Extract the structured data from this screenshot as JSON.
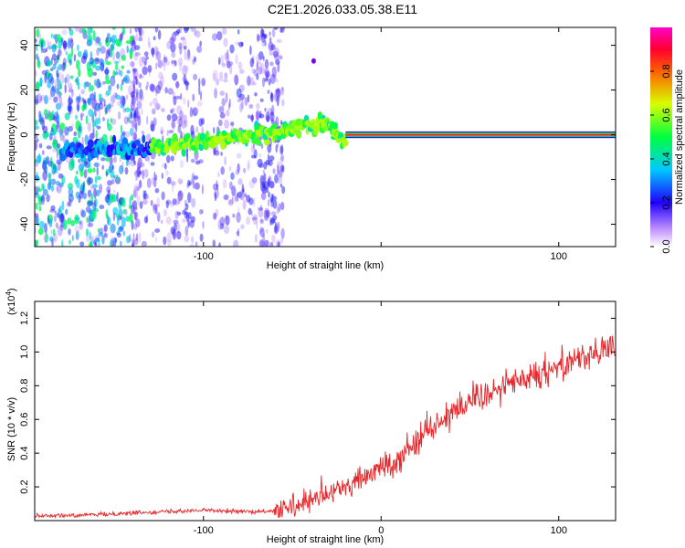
{
  "title": "C2E1.2026.033.05.38.E11",
  "chart_data": [
    {
      "type": "heatmap",
      "xlabel": "Height of straight line (km)",
      "ylabel": "Frequency (Hz)",
      "xlim": [
        -195,
        132
      ],
      "ylim": [
        -50,
        48
      ],
      "xticks": [
        -100,
        0,
        100
      ],
      "xtick_labels": [
        "-100",
        "",
        "100"
      ],
      "yticks": [
        -40,
        -20,
        0,
        20,
        40
      ],
      "ytick_labels": [
        "-40",
        "-20",
        "0",
        "20",
        "40"
      ],
      "ridge": {
        "x": [
          -160,
          -140,
          -120,
          -100,
          -80,
          -60,
          -45,
          -30,
          -22,
          -15,
          -5,
          5,
          20,
          60,
          100,
          132
        ],
        "frequency": [
          -7,
          -6,
          -5,
          -3,
          -1,
          1,
          4,
          5,
          -2,
          -1,
          0,
          0,
          0,
          0,
          0,
          0
        ]
      },
      "colorbar": {
        "label": "Normalized spectral amplitude",
        "range": [
          0,
          1
        ],
        "ticks": [
          0.0,
          0.2,
          0.4,
          0.6,
          0.8
        ],
        "tick_labels": [
          "0.0",
          "0.2",
          "0.4",
          "0.6",
          "0.8"
        ],
        "colors": [
          "#ffffff",
          "#b070ff",
          "#0000ff",
          "#00ffff",
          "#00ff00",
          "#ffff00",
          "#ff0000",
          "#ff00c0"
        ]
      }
    },
    {
      "type": "line",
      "xlabel": "Height of straight line (km)",
      "ylabel": "SNR (10 * v/v)",
      "multiplier": "(x10",
      "multiplier_exp": "4",
      "multiplier_close": ")",
      "xlim": [
        -195,
        132
      ],
      "ylim": [
        0.0,
        1.3
      ],
      "xticks": [
        -100,
        0,
        100
      ],
      "xtick_labels": [
        "-100",
        "0",
        "100"
      ],
      "yticks": [
        0.2,
        0.4,
        0.6,
        0.8,
        1.0,
        1.2
      ],
      "ytick_labels": [
        "0.2",
        "0.4",
        "0.6",
        "0.8",
        "1.0",
        "1.2"
      ],
      "series": [
        {
          "name": "SNR",
          "color": "#e8262a",
          "x": [
            -195,
            -170,
            -150,
            -130,
            -110,
            -90,
            -70,
            -55,
            -45,
            -35,
            -25,
            -15,
            -5,
            5,
            15,
            25,
            35,
            45,
            55,
            65,
            75,
            85,
            95,
            105,
            115,
            125,
            132
          ],
          "y": [
            0.03,
            0.03,
            0.04,
            0.05,
            0.06,
            0.06,
            0.05,
            0.06,
            0.09,
            0.13,
            0.18,
            0.22,
            0.28,
            0.34,
            0.42,
            0.52,
            0.62,
            0.68,
            0.74,
            0.78,
            0.82,
            0.86,
            0.9,
            0.95,
            0.98,
            1.0,
            1.02
          ]
        }
      ]
    }
  ]
}
